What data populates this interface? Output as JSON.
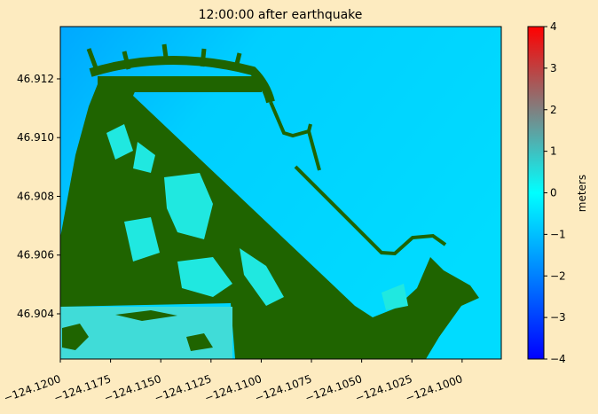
{
  "chart_data": {
    "type": "heatmap",
    "title": "12:00:00 after earthquake",
    "xlim": [
      -124.12,
      -124.09805
    ],
    "ylim": [
      46.90246,
      46.91378
    ],
    "xticks": [
      {
        "value": -124.12,
        "label": "−124.1200"
      },
      {
        "value": -124.1175,
        "label": "−124.1175"
      },
      {
        "value": -124.115,
        "label": "−124.1150"
      },
      {
        "value": -124.1125,
        "label": "−124.1125"
      },
      {
        "value": -124.11,
        "label": "−124.1100"
      },
      {
        "value": -124.1075,
        "label": "−124.1075"
      },
      {
        "value": -124.105,
        "label": "−124.1050"
      },
      {
        "value": -124.1025,
        "label": "−124.1025"
      },
      {
        "value": -124.1,
        "label": "−124.1000"
      }
    ],
    "yticks": [
      46.904,
      46.906,
      46.908,
      {
        "value": 46.91,
        "label": "46.910"
      },
      46.912
    ],
    "colorbar": {
      "label": "meters",
      "clim": [
        -4,
        4
      ],
      "ticks": [
        {
          "value": -4,
          "label": "−4"
        },
        {
          "value": -3,
          "label": "−3"
        },
        {
          "value": -2,
          "label": "−2"
        },
        {
          "value": -1,
          "label": "−1"
        },
        0,
        1,
        2,
        3,
        4
      ],
      "colormap": [
        "#0000ff",
        "#0080ff",
        "#00ffff",
        "#808080",
        "#ff0000"
      ]
    }
  }
}
